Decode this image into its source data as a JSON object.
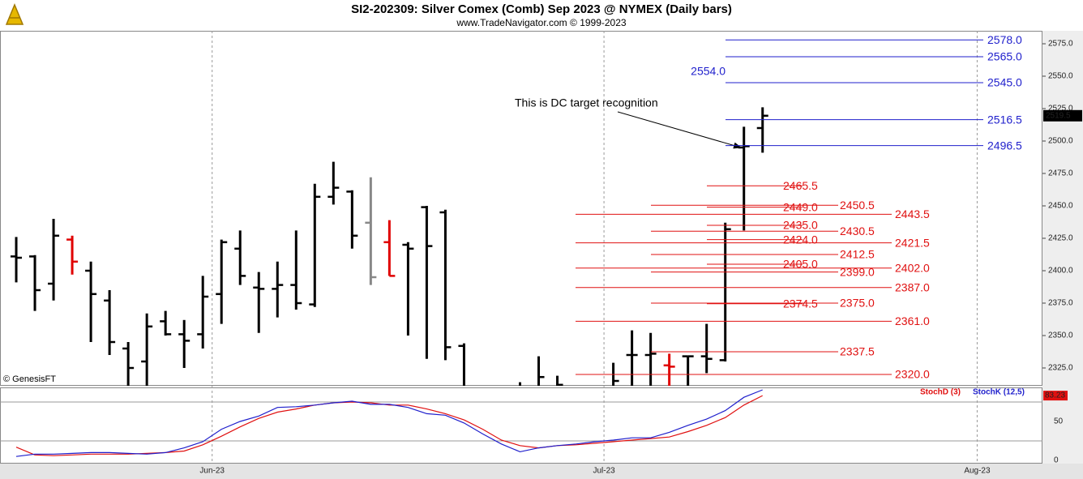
{
  "chart_data": [
    {
      "type": "ohlc",
      "title": "SI2-202309:  Silver Comex (Comb) Sep 2023 @ NYMEX  (Daily bars)",
      "subtitle": "www.TradeNavigator.com © 1999-2023",
      "watermark": "© GenesisFT",
      "annotation": "This is DC target recognition",
      "xlim": [
        -0.87,
        55
      ],
      "xticks": [
        {
          "value": 10.5,
          "label": "Jun-23"
        },
        {
          "value": 31.5,
          "label": "Jul-23"
        },
        {
          "value": 51.5,
          "label": "Aug-23"
        }
      ],
      "ylim": [
        2311.25,
        2585
      ],
      "yticks": [
        {
          "value": 2325,
          "label": "2325.0"
        },
        {
          "value": 2350,
          "label": "2350.0"
        },
        {
          "value": 2375,
          "label": "2375.0"
        },
        {
          "value": 2400,
          "label": "2400.0"
        },
        {
          "value": 2425,
          "label": "2425.0"
        },
        {
          "value": 2450,
          "label": "2450.0"
        },
        {
          "value": 2475,
          "label": "2475.0"
        },
        {
          "value": 2500,
          "label": "2500.0"
        },
        {
          "value": 2525,
          "label": "2525.0"
        },
        {
          "value": 2550,
          "label": "2550.0"
        },
        {
          "value": 2575,
          "label": "2575.0"
        }
      ],
      "open": [
        2411,
        2411,
        2390,
        2424,
        2400,
        2377,
        2340,
        2330,
        2361,
        2351,
        2351,
        2382,
        2417,
        2387,
        2386,
        2389,
        2374,
        2457,
        2461,
        2437,
        2422,
        2420,
        2449,
        2445,
        2342,
        null,
        null,
        2305,
        2305,
        2305,
        null,
        null,
        2305,
        2335,
        2335,
        2327,
        2334,
        2334,
        2331,
        2495,
        2510
      ],
      "high": [
        2426,
        2412,
        2440,
        2427,
        2407,
        2385,
        2345,
        2367,
        2369,
        2362,
        2396,
        2424,
        2431,
        2399,
        2407,
        2431,
        2467,
        2484,
        2462,
        2472,
        2439,
        2422,
        2450,
        2447,
        2344,
        null,
        null,
        2314,
        2334,
        2319,
        null,
        null,
        2329,
        2354,
        2352,
        2336,
        2334,
        2359,
        2437,
        2511,
        2526
      ],
      "low": [
        2391,
        2369,
        2377,
        2397,
        2345,
        2335,
        2300,
        2300,
        2350,
        2325,
        2340,
        2359,
        2389,
        2352,
        2364,
        2370,
        2372,
        2451,
        2417,
        2389,
        2396,
        2350,
        2332,
        2331,
        2300,
        null,
        null,
        2300,
        2300,
        2300,
        null,
        null,
        2300,
        2310,
        2305,
        2305,
        2308,
        2321,
        2330,
        2431,
        2491
      ],
      "close": [
        2410,
        2385,
        2427,
        2407,
        2382,
        2345,
        2325,
        2357,
        2351,
        2346,
        2380,
        2422,
        2396,
        2386,
        2389,
        2375,
        2457,
        2464,
        2427,
        2395,
        2396,
        2417,
        2419,
        2341,
        2310,
        null,
        null,
        2308,
        2318,
        2312,
        null,
        null,
        2315,
        2335,
        2336,
        2326,
        2334,
        2332,
        2432,
        2496,
        2519.5
      ],
      "bar_colors": [
        "#000",
        "#000",
        "#000",
        "#e00000",
        "#000",
        "#000",
        "#000",
        "#000",
        "#000",
        "#000",
        "#000",
        "#000",
        "#000",
        "#000",
        "#000",
        "#000",
        "#000",
        "#000",
        "#000",
        "#888",
        "#e00000",
        "#000",
        "#000",
        "#000",
        "#000",
        "#000",
        "#000",
        "#000",
        "#000",
        "#000",
        "#000",
        "#000",
        "#000",
        "#000",
        "#000",
        "#e00000",
        "#000",
        "#000",
        "#000",
        "#000",
        "#000"
      ],
      "levels": [
        {
          "color": "#1f1fcc",
          "items": [
            {
              "value": 2578,
              "label": "2578.0"
            },
            {
              "value": 2565,
              "label": "2565.0"
            },
            {
              "value": 2545,
              "label": "2545.0"
            },
            {
              "value": 2516.5,
              "label": "2516.5"
            },
            {
              "value": 2496.5,
              "label": "2496.5"
            }
          ]
        },
        {
          "color": "#e01010",
          "items": [
            {
              "value": 2443.5,
              "label": "2443.5"
            },
            {
              "value": 2421.5,
              "label": "2421.5"
            },
            {
              "value": 2402,
              "label": "2402.0"
            },
            {
              "value": 2387,
              "label": "2387.0"
            },
            {
              "value": 2361,
              "label": "2361.0"
            },
            {
              "value": 2320,
              "label": "2320.0"
            }
          ]
        },
        {
          "color": "#e01010",
          "items": [
            {
              "value": 2450.5,
              "label": "2450.5"
            },
            {
              "value": 2430.5,
              "label": "2430.5"
            },
            {
              "value": 2412.5,
              "label": "2412.5"
            },
            {
              "value": 2399,
              "label": "2399.0"
            },
            {
              "value": 2375,
              "label": "2375.0"
            },
            {
              "value": 2337.5,
              "label": "2337.5"
            }
          ]
        },
        {
          "color": "#e01010",
          "items": [
            {
              "value": 2465.5,
              "label": "2465.5"
            },
            {
              "value": 2449,
              "label": "2449.0"
            },
            {
              "value": 2435,
              "label": "2435.0"
            },
            {
              "value": 2424,
              "label": "2424.0"
            },
            {
              "value": 2405,
              "label": "2405.0"
            },
            {
              "value": 2374.5,
              "label": "2374.5"
            }
          ]
        },
        {
          "color": "#1f1fcc",
          "items": [
            {
              "value": 2554,
              "label": "2554.0"
            }
          ]
        }
      ]
    },
    {
      "type": "line",
      "ylim": [
        -4.17,
        93.75
      ],
      "yticks": [
        0,
        50
      ],
      "hlines": [
        25,
        75
      ],
      "series": [
        {
          "name": "StochD (3)",
          "color": "#e01010",
          "values": [
            17,
            7,
            6,
            7,
            8,
            8,
            8,
            9,
            10,
            12,
            20,
            31,
            43,
            54,
            62,
            66,
            71,
            74,
            75,
            74,
            71,
            71,
            66,
            60,
            52,
            40,
            26,
            19,
            16,
            19,
            20,
            22,
            24,
            26,
            28,
            30,
            37,
            45,
            55,
            71,
            83.23
          ]
        },
        {
          "name": "StochK (12,5)",
          "color": "#1f1fcc",
          "values": [
            5,
            8,
            8,
            9,
            10,
            10,
            9,
            8,
            10,
            16,
            24,
            40,
            50,
            57,
            68,
            69,
            71,
            74,
            76,
            72,
            72,
            68,
            60,
            58,
            48,
            34,
            21,
            11,
            16,
            19,
            21,
            24,
            26,
            29,
            29,
            36,
            45,
            53,
            64,
            81,
            90.6
          ]
        }
      ]
    }
  ]
}
